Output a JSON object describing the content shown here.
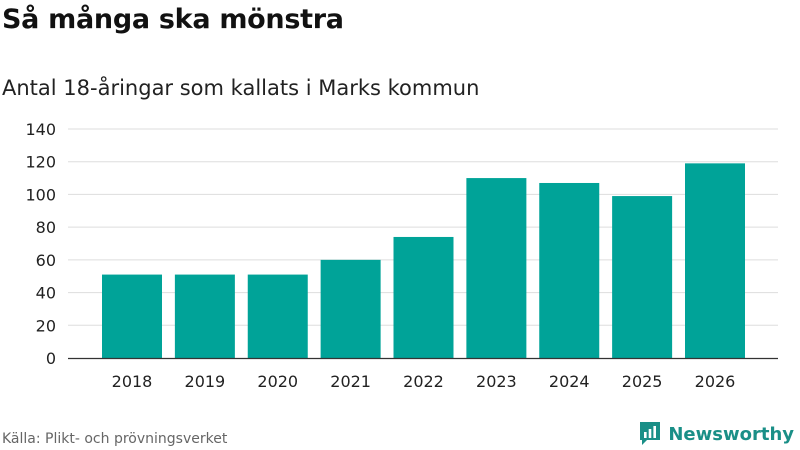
{
  "header": {
    "title": "Så många ska mönstra",
    "subtitle": "Antal 18-åringar som kallats i Marks kommun"
  },
  "footer": {
    "source": "Källa: Plikt- och prövningsverket",
    "brand": "Newsworthy"
  },
  "colors": {
    "bar": "#00a398",
    "grid": "#dddddd",
    "axis": "#333333",
    "brand": "#1a8f87"
  },
  "chart_data": {
    "type": "bar",
    "title": "Så många ska mönstra",
    "subtitle": "Antal 18-åringar som kallats i Marks kommun",
    "xlabel": "",
    "ylabel": "",
    "categories": [
      "2018",
      "2019",
      "2020",
      "2021",
      "2022",
      "2023",
      "2024",
      "2025",
      "2026"
    ],
    "values": [
      51,
      51,
      51,
      60,
      74,
      110,
      107,
      99,
      119
    ],
    "ylim": [
      0,
      140
    ],
    "yticks": [
      0,
      20,
      40,
      60,
      80,
      100,
      120,
      140
    ],
    "grid": true,
    "legend": "none"
  }
}
